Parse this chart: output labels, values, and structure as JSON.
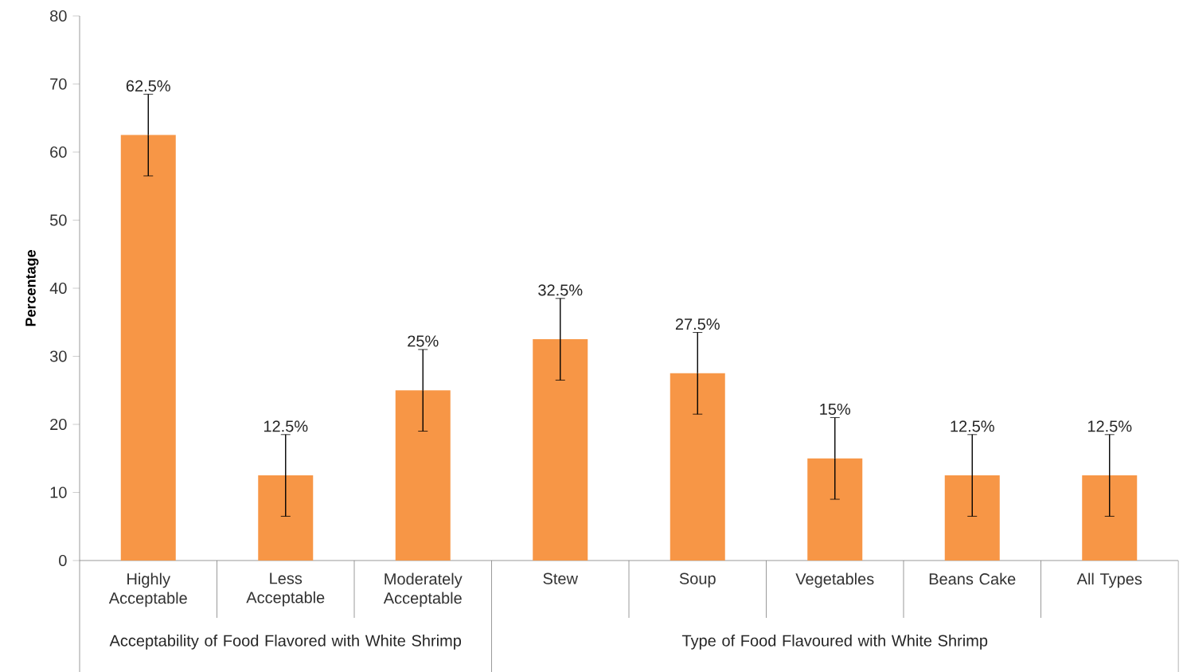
{
  "chart_data": {
    "type": "bar",
    "ylabel": "Percentage",
    "categories": [
      "Highly Acceptable",
      "Less Acceptable",
      "Moderately Acceptable",
      "Stew",
      "Soup",
      "Vegetables",
      "Beans Cake",
      "All Types"
    ],
    "values": [
      62.5,
      12.5,
      25,
      32.5,
      27.5,
      15,
      12.5,
      12.5
    ],
    "errors": [
      6,
      6,
      6,
      6,
      6,
      6,
      6,
      6
    ],
    "value_labels": [
      "62.5%",
      "12.5%",
      "25%",
      "32.5%",
      "27.5%",
      "15%",
      "12.5%",
      "12.5%"
    ],
    "color": "#f79646",
    "ylim": [
      0,
      80
    ],
    "yticks": [
      0,
      10,
      20,
      30,
      40,
      50,
      60,
      70,
      80
    ],
    "annotations": [
      "Acceptability of Food Flavored with White Shrimp",
      "Type of Food Flavoured with White Shrimp"
    ]
  }
}
